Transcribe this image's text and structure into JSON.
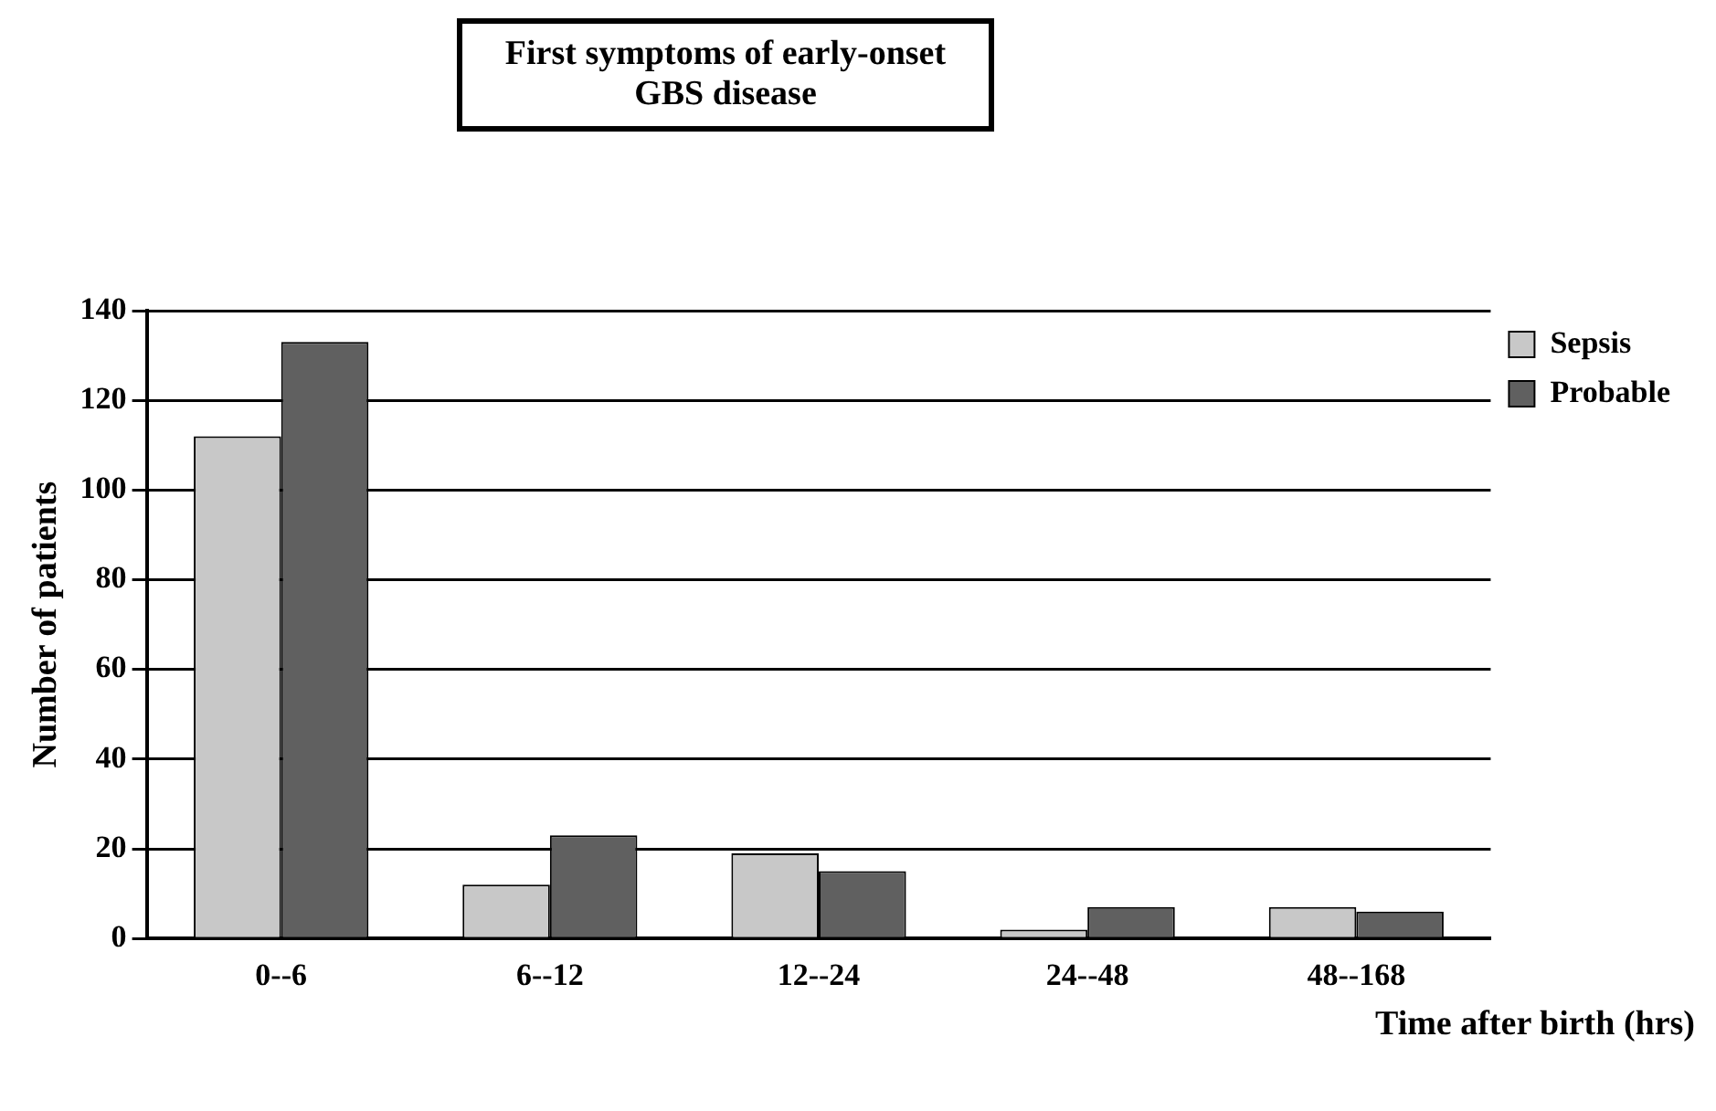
{
  "chart_data": {
    "type": "bar",
    "title": "First symptoms of early-onset GBS disease",
    "xlabel": "Time after birth (hrs)",
    "ylabel": "Number of patients",
    "categories": [
      "0--6",
      "6--12",
      "12--24",
      "24--48",
      "48--168"
    ],
    "series": [
      {
        "name": "Sepsis",
        "color": "#c8c8c8",
        "values": [
          112,
          12,
          19,
          2,
          7
        ]
      },
      {
        "name": "Probable",
        "color": "#606060",
        "values": [
          133,
          23,
          15,
          7,
          6
        ]
      }
    ],
    "ylim": [
      0,
      140
    ],
    "yticks": [
      0,
      20,
      40,
      60,
      80,
      100,
      120,
      140
    ],
    "grid": "y",
    "legend": "top right"
  }
}
